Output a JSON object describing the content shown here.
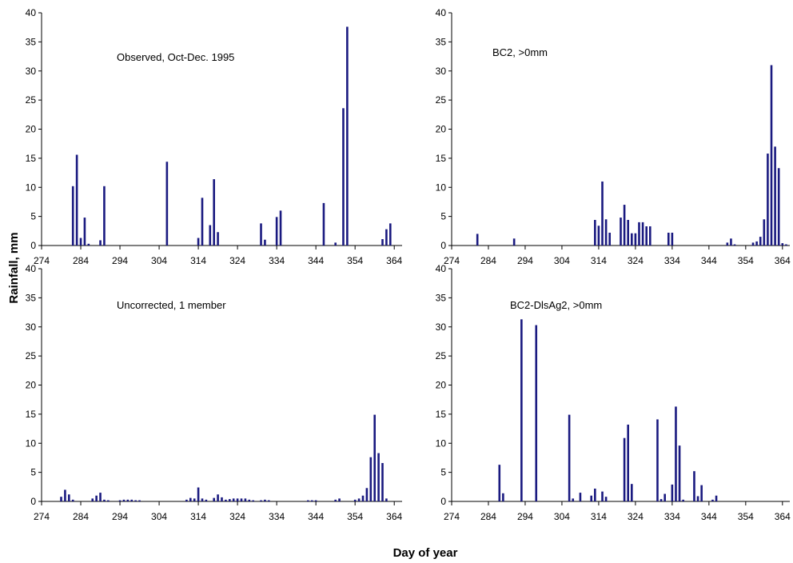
{
  "figure": {
    "ylabel": "Rainfall, mm",
    "xlabel": "Day of year"
  },
  "chart_data": [
    {
      "type": "bar",
      "annotation": "Observed, Oct-Dec. 1995",
      "ylim": [
        0,
        40
      ],
      "yticks": [
        0,
        5,
        10,
        15,
        20,
        25,
        30,
        35,
        40
      ],
      "xlim": [
        274,
        366
      ],
      "xticks": [
        274,
        284,
        294,
        304,
        314,
        324,
        334,
        344,
        354,
        364
      ],
      "x": [
        282,
        283,
        284,
        285,
        286,
        289,
        290,
        306,
        314,
        315,
        317,
        318,
        319,
        330,
        331,
        334,
        335,
        346,
        349,
        351,
        352,
        361,
        362,
        363
      ],
      "values": [
        10.2,
        15.6,
        1.3,
        4.8,
        0.3,
        0.9,
        10.2,
        14.4,
        1.3,
        8.2,
        3.5,
        11.4,
        2.3,
        3.8,
        1.0,
        4.9,
        6.0,
        7.3,
        0.5,
        23.6,
        37.6,
        1.1,
        2.8,
        3.8
      ],
      "series_color": "#1a1a80"
    },
    {
      "type": "bar",
      "annotation": "BC2, >0mm",
      "ylim": [
        0,
        40
      ],
      "yticks": [
        0,
        5,
        10,
        15,
        20,
        25,
        30,
        35,
        40
      ],
      "xlim": [
        274,
        366
      ],
      "xticks": [
        274,
        284,
        294,
        304,
        314,
        324,
        334,
        344,
        354,
        364
      ],
      "x": [
        281,
        291,
        313,
        314,
        315,
        316,
        317,
        320,
        321,
        322,
        323,
        324,
        325,
        326,
        327,
        328,
        333,
        334,
        349,
        350,
        351,
        356,
        357,
        358,
        359,
        360,
        361,
        362,
        363,
        364,
        365
      ],
      "values": [
        2.0,
        1.2,
        4.4,
        3.4,
        11.0,
        4.5,
        2.2,
        4.8,
        7.0,
        4.4,
        2.1,
        2.1,
        4.0,
        4.0,
        3.3,
        3.3,
        2.2,
        2.2,
        0.5,
        1.2,
        0.2,
        0.5,
        0.7,
        1.5,
        4.5,
        15.8,
        31.0,
        17.0,
        13.3,
        0.4,
        0.2
      ],
      "series_color": "#1a1a80"
    },
    {
      "type": "bar",
      "annotation": "Uncorrected, 1 member",
      "ylim": [
        0,
        40
      ],
      "yticks": [
        0,
        5,
        10,
        15,
        20,
        25,
        30,
        35,
        40
      ],
      "xlim": [
        274,
        366
      ],
      "xticks": [
        274,
        284,
        294,
        304,
        314,
        324,
        334,
        344,
        354,
        364
      ],
      "x": [
        279,
        280,
        281,
        282,
        287,
        288,
        289,
        290,
        291,
        294,
        295,
        296,
        297,
        298,
        299,
        311,
        312,
        313,
        314,
        315,
        316,
        318,
        319,
        320,
        321,
        322,
        323,
        324,
        325,
        326,
        327,
        328,
        330,
        331,
        332,
        342,
        343,
        344,
        349,
        350,
        354,
        355,
        356,
        357,
        358,
        359,
        360,
        361,
        362
      ],
      "values": [
        0.8,
        2.0,
        1.2,
        0.3,
        0.5,
        1.0,
        1.5,
        0.3,
        0.2,
        0.2,
        0.3,
        0.3,
        0.3,
        0.2,
        0.2,
        0.3,
        0.6,
        0.5,
        2.4,
        0.5,
        0.3,
        0.6,
        1.2,
        0.7,
        0.3,
        0.4,
        0.5,
        0.5,
        0.5,
        0.5,
        0.3,
        0.2,
        0.2,
        0.3,
        0.2,
        0.2,
        0.2,
        0.2,
        0.3,
        0.5,
        0.3,
        0.5,
        1.0,
        2.3,
        7.6,
        14.9,
        8.3,
        6.6,
        0.5
      ],
      "series_color": "#1a1a80"
    },
    {
      "type": "bar",
      "annotation": "BC2-DlsAg2, >0mm",
      "ylim": [
        0,
        40
      ],
      "yticks": [
        0,
        5,
        10,
        15,
        20,
        25,
        30,
        35,
        40
      ],
      "xlim": [
        274,
        366
      ],
      "xticks": [
        274,
        284,
        294,
        304,
        314,
        324,
        334,
        344,
        354,
        364
      ],
      "x": [
        287,
        288,
        293,
        297,
        306,
        307,
        309,
        312,
        313,
        315,
        316,
        321,
        322,
        323,
        330,
        331,
        332,
        334,
        335,
        336,
        337,
        340,
        341,
        342,
        345,
        346
      ],
      "values": [
        6.3,
        1.4,
        31.3,
        30.3,
        14.9,
        0.5,
        1.5,
        1.0,
        2.2,
        1.7,
        0.8,
        10.9,
        13.2,
        3.0,
        14.1,
        0.4,
        1.3,
        2.9,
        16.3,
        9.6,
        0.3,
        5.2,
        0.9,
        2.8,
        0.3,
        1.0
      ],
      "series_color": "#1a1a80"
    }
  ]
}
